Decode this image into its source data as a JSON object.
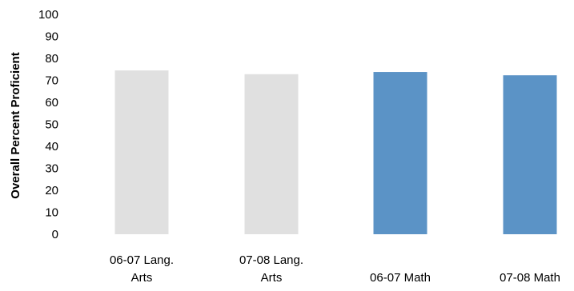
{
  "chart_data": {
    "type": "bar",
    "title": "",
    "xlabel": "",
    "ylabel": "Overall Percent Proficient",
    "ylim": [
      0,
      100
    ],
    "y_ticks": [
      "0",
      "10",
      "20",
      "30",
      "40",
      "50",
      "60",
      "70",
      "80",
      "90",
      "100"
    ],
    "grid": false,
    "legend": "none",
    "categories": [
      [
        "06-07 Lang.",
        "Arts"
      ],
      [
        "07-08 Lang.",
        "Arts"
      ],
      [
        "06-07 Math"
      ],
      [
        "07-08 Math"
      ]
    ],
    "values": [
      74.5,
      72.8,
      73.8,
      72.3
    ],
    "colors": {
      "lang_arts": "#e0e0e0",
      "math": "#5b93c6"
    },
    "bar_color_keys": [
      "lang_arts",
      "lang_arts",
      "math",
      "math"
    ]
  }
}
